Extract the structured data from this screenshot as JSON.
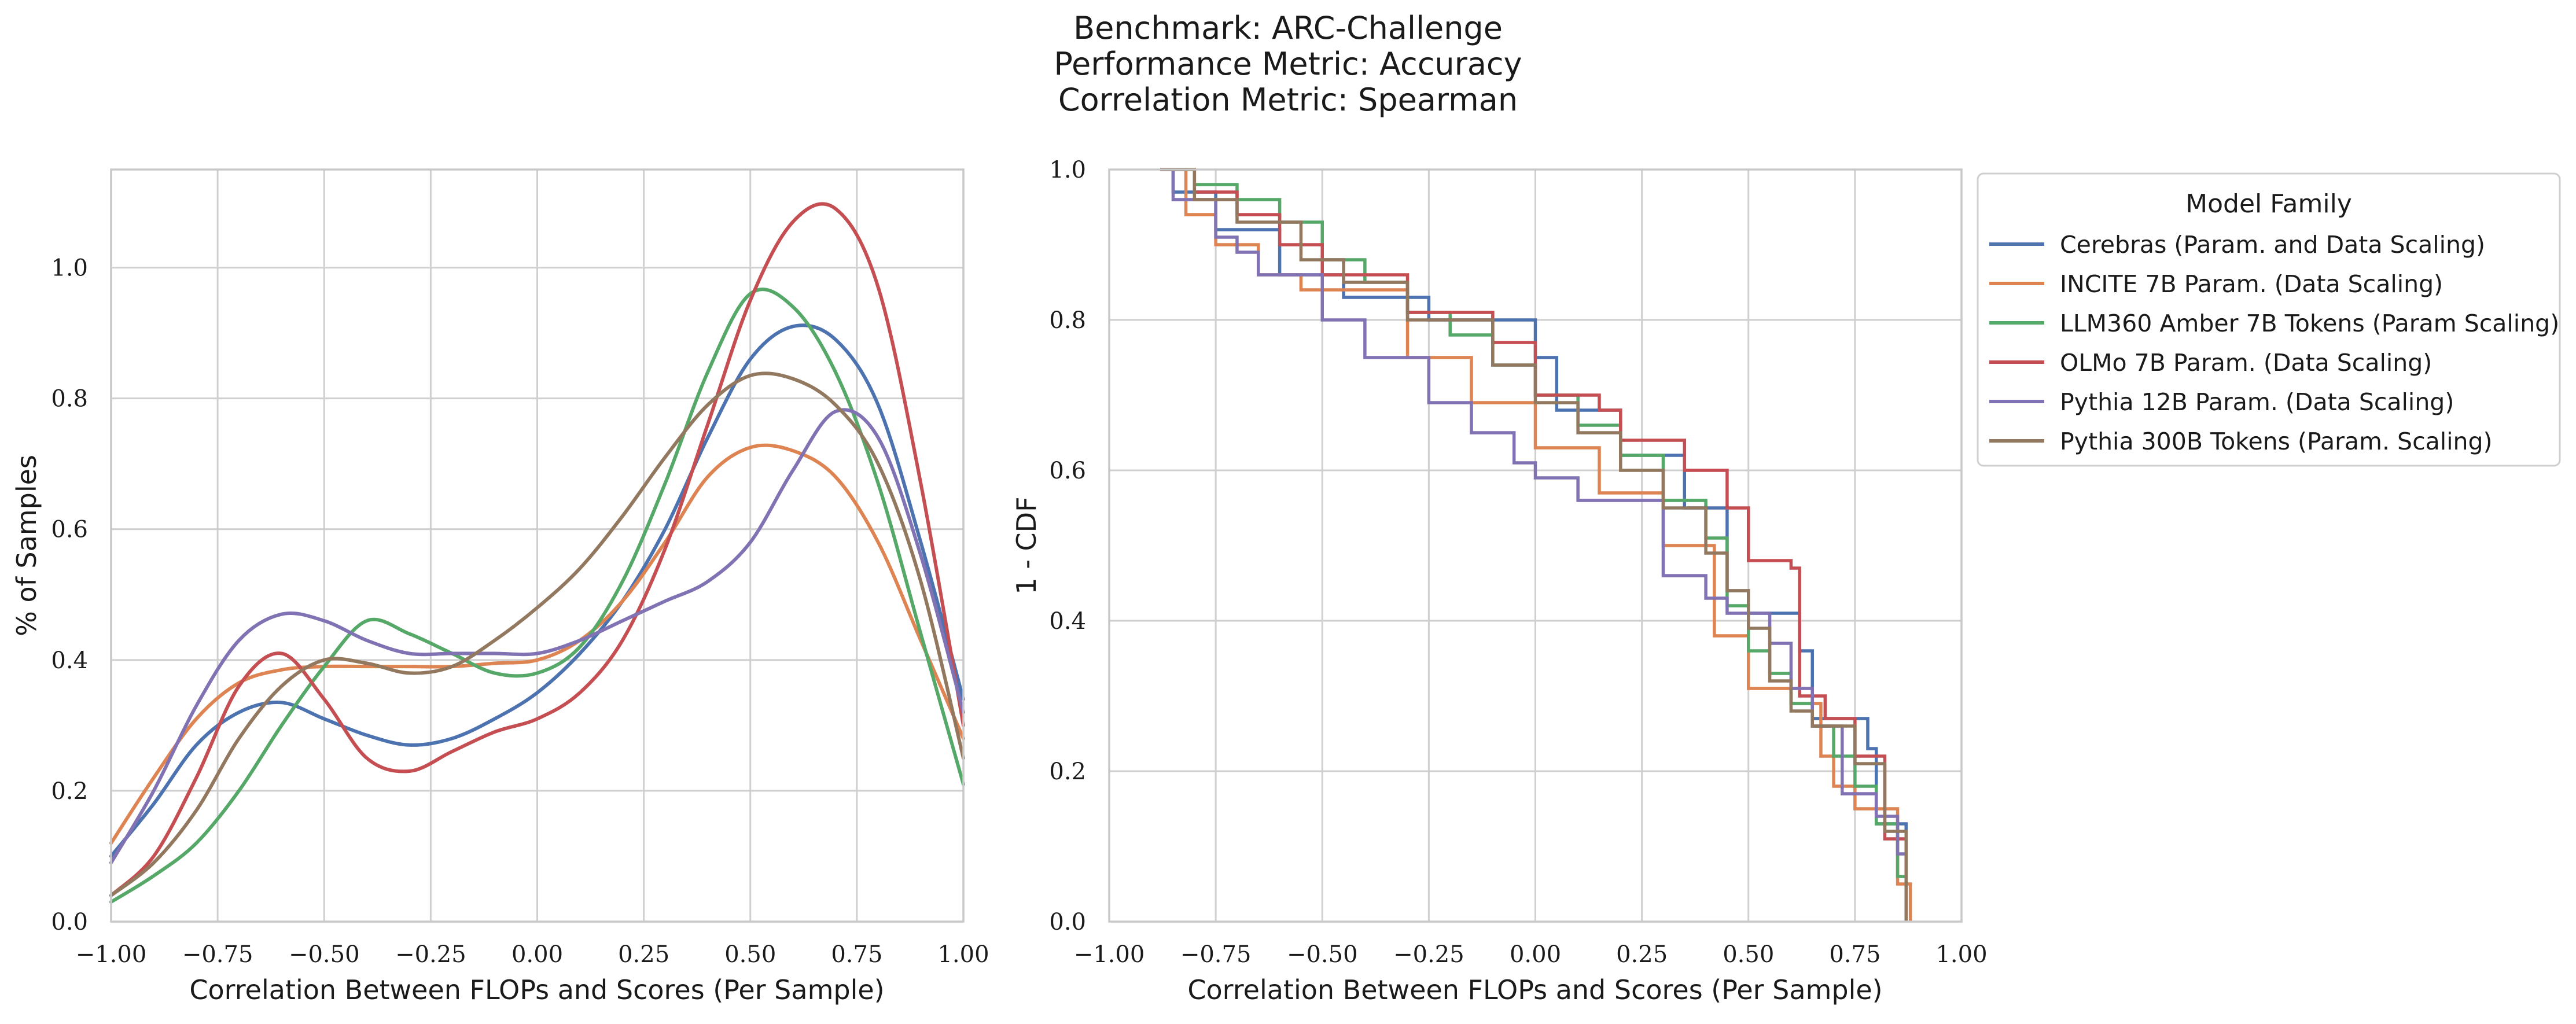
{
  "title_lines": [
    "Benchmark: ARC-Challenge",
    "Performance Metric: Accuracy",
    "Correlation Metric: Spearman"
  ],
  "legend": {
    "title": "Model Family"
  },
  "colors": {
    "Cerebras (Param. and Data Scaling)": "#4c72b0",
    "INCITE 7B Param. (Data Scaling)": "#dd8452",
    "LLM360 Amber 7B Tokens (Param Scaling)": "#55a868",
    "OLMo 7B Param. (Data Scaling)": "#c44e52",
    "Pythia 12B Param. (Data Scaling)": "#8172b3",
    "Pythia 300B Tokens (Param. Scaling)": "#937860"
  },
  "chart_data": [
    {
      "type": "line",
      "xlabel": "Correlation Between FLOPs and Scores (Per Sample)",
      "ylabel": "% of Samples",
      "xlim": [
        -1.0,
        1.0
      ],
      "ylim": [
        0.0,
        1.15
      ],
      "xticks": [
        "−1.00",
        "−0.75",
        "−0.50",
        "−0.25",
        "0.00",
        "0.25",
        "0.50",
        "0.75",
        "1.00"
      ],
      "yticks": [
        "0.0",
        "0.2",
        "0.4",
        "0.6",
        "0.8",
        "1.0"
      ],
      "grid": true,
      "x": [
        -1.0,
        -0.9,
        -0.8,
        -0.7,
        -0.6,
        -0.5,
        -0.4,
        -0.3,
        -0.2,
        -0.1,
        0.0,
        0.1,
        0.2,
        0.3,
        0.4,
        0.5,
        0.6,
        0.7,
        0.8,
        0.9,
        1.0
      ],
      "series": [
        {
          "name": "Cerebras (Param. and Data Scaling)",
          "values": [
            0.1,
            0.18,
            0.27,
            0.32,
            0.335,
            0.31,
            0.285,
            0.27,
            0.28,
            0.31,
            0.35,
            0.41,
            0.49,
            0.6,
            0.74,
            0.86,
            0.91,
            0.89,
            0.79,
            0.58,
            0.34
          ]
        },
        {
          "name": "INCITE 7B Param. (Data Scaling)",
          "values": [
            0.12,
            0.22,
            0.31,
            0.365,
            0.385,
            0.39,
            0.39,
            0.39,
            0.39,
            0.395,
            0.4,
            0.43,
            0.49,
            0.58,
            0.68,
            0.725,
            0.72,
            0.68,
            0.58,
            0.43,
            0.28
          ]
        },
        {
          "name": "LLM360 Amber 7B Tokens (Param Scaling)",
          "values": [
            0.03,
            0.07,
            0.12,
            0.2,
            0.3,
            0.39,
            0.46,
            0.44,
            0.41,
            0.38,
            0.38,
            0.42,
            0.52,
            0.67,
            0.84,
            0.96,
            0.94,
            0.84,
            0.67,
            0.44,
            0.21
          ]
        },
        {
          "name": "OLMo 7B Param. (Data Scaling)",
          "values": [
            0.04,
            0.1,
            0.22,
            0.36,
            0.41,
            0.34,
            0.25,
            0.23,
            0.26,
            0.29,
            0.31,
            0.35,
            0.43,
            0.57,
            0.76,
            0.95,
            1.07,
            1.09,
            0.97,
            0.67,
            0.3
          ]
        },
        {
          "name": "Pythia 12B Param. (Data Scaling)",
          "values": [
            0.09,
            0.2,
            0.33,
            0.43,
            0.47,
            0.46,
            0.43,
            0.41,
            0.41,
            0.41,
            0.41,
            0.43,
            0.46,
            0.49,
            0.52,
            0.58,
            0.69,
            0.78,
            0.74,
            0.56,
            0.32
          ]
        },
        {
          "name": "Pythia 300B Tokens (Param. Scaling)",
          "values": [
            0.04,
            0.09,
            0.17,
            0.28,
            0.36,
            0.4,
            0.395,
            0.38,
            0.39,
            0.43,
            0.48,
            0.54,
            0.62,
            0.71,
            0.79,
            0.835,
            0.83,
            0.79,
            0.7,
            0.52,
            0.25
          ]
        }
      ]
    },
    {
      "type": "line",
      "step": true,
      "xlabel": "Correlation Between FLOPs and Scores (Per Sample)",
      "ylabel": "1 - CDF",
      "xlim": [
        -1.0,
        1.0
      ],
      "ylim": [
        0.0,
        1.0
      ],
      "xticks": [
        "−1.00",
        "−0.75",
        "−0.50",
        "−0.25",
        "0.00",
        "0.25",
        "0.50",
        "0.75",
        "1.00"
      ],
      "yticks": [
        "0.0",
        "0.2",
        "0.4",
        "0.6",
        "0.8",
        "1.0"
      ],
      "grid": true,
      "legend_position": "outside-right-top",
      "series": [
        {
          "name": "Cerebras (Param. and Data Scaling)",
          "x": [
            -0.88,
            -0.85,
            -0.75,
            -0.6,
            -0.45,
            -0.25,
            0.0,
            0.05,
            0.2,
            0.35,
            0.45,
            0.5,
            0.62,
            0.65,
            0.78,
            0.8,
            0.87
          ],
          "y": [
            1.0,
            0.97,
            0.92,
            0.86,
            0.83,
            0.8,
            0.75,
            0.68,
            0.62,
            0.55,
            0.44,
            0.41,
            0.36,
            0.27,
            0.23,
            0.13,
            0.0
          ]
        },
        {
          "name": "INCITE 7B Param. (Data Scaling)",
          "x": [
            -0.88,
            -0.82,
            -0.75,
            -0.65,
            -0.55,
            -0.3,
            -0.15,
            0.0,
            0.15,
            0.3,
            0.42,
            0.5,
            0.6,
            0.67,
            0.7,
            0.75,
            0.85,
            0.88
          ],
          "y": [
            1.0,
            0.94,
            0.9,
            0.86,
            0.84,
            0.75,
            0.69,
            0.63,
            0.57,
            0.5,
            0.38,
            0.31,
            0.29,
            0.22,
            0.18,
            0.15,
            0.05,
            0.0
          ]
        },
        {
          "name": "LLM360 Amber 7B Tokens (Param Scaling)",
          "x": [
            -0.88,
            -0.8,
            -0.7,
            -0.6,
            -0.5,
            -0.4,
            -0.3,
            -0.2,
            -0.1,
            0.0,
            0.1,
            0.2,
            0.3,
            0.4,
            0.45,
            0.5,
            0.55,
            0.6,
            0.65,
            0.7,
            0.75,
            0.8,
            0.85,
            0.87
          ],
          "y": [
            1.0,
            0.98,
            0.96,
            0.93,
            0.88,
            0.85,
            0.81,
            0.78,
            0.74,
            0.7,
            0.66,
            0.62,
            0.56,
            0.51,
            0.42,
            0.36,
            0.33,
            0.29,
            0.26,
            0.22,
            0.18,
            0.13,
            0.06,
            0.0
          ]
        },
        {
          "name": "OLMo 7B Param. (Data Scaling)",
          "x": [
            -0.88,
            -0.8,
            -0.7,
            -0.6,
            -0.5,
            -0.3,
            -0.1,
            0.0,
            0.15,
            0.2,
            0.35,
            0.45,
            0.5,
            0.6,
            0.62,
            0.68,
            0.75,
            0.82,
            0.87
          ],
          "y": [
            1.0,
            0.97,
            0.94,
            0.9,
            0.86,
            0.81,
            0.77,
            0.7,
            0.68,
            0.64,
            0.6,
            0.55,
            0.48,
            0.47,
            0.3,
            0.27,
            0.22,
            0.11,
            0.0
          ]
        },
        {
          "name": "Pythia 12B Param. (Data Scaling)",
          "x": [
            -0.88,
            -0.85,
            -0.75,
            -0.7,
            -0.65,
            -0.5,
            -0.4,
            -0.25,
            -0.15,
            -0.05,
            0.0,
            0.1,
            0.3,
            0.4,
            0.45,
            0.55,
            0.6,
            0.65,
            0.72,
            0.8,
            0.85,
            0.87
          ],
          "y": [
            1.0,
            0.96,
            0.91,
            0.89,
            0.86,
            0.8,
            0.75,
            0.69,
            0.65,
            0.61,
            0.59,
            0.56,
            0.46,
            0.43,
            0.41,
            0.37,
            0.31,
            0.26,
            0.17,
            0.14,
            0.09,
            0.0
          ]
        },
        {
          "name": "Pythia 300B Tokens (Param. Scaling)",
          "x": [
            -0.88,
            -0.8,
            -0.7,
            -0.55,
            -0.45,
            -0.3,
            -0.1,
            0.0,
            0.1,
            0.2,
            0.3,
            0.4,
            0.45,
            0.5,
            0.55,
            0.6,
            0.65,
            0.75,
            0.82,
            0.87
          ],
          "y": [
            1.0,
            0.96,
            0.93,
            0.88,
            0.85,
            0.8,
            0.74,
            0.69,
            0.65,
            0.6,
            0.55,
            0.49,
            0.44,
            0.39,
            0.32,
            0.28,
            0.26,
            0.21,
            0.12,
            0.0
          ]
        }
      ]
    }
  ]
}
